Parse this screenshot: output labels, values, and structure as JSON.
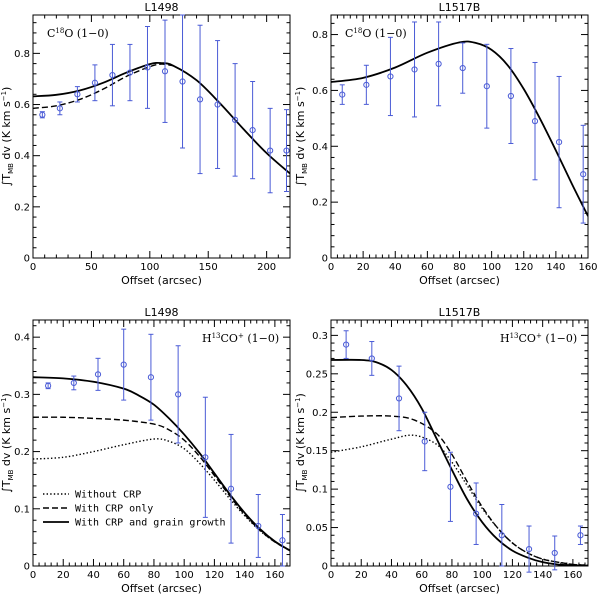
{
  "colors": {
    "data": "#4a5bd6",
    "model": "#000000"
  },
  "chart_data": [
    {
      "type": "line",
      "title": "L1498",
      "annotation": {
        "pre": "C",
        "sup": "18",
        "post": "O (1−0)"
      },
      "xlabel": "Offset (arcsec)",
      "ylabel": "∫T_MB dv (K km s^-1)",
      "xlim": [
        0,
        220
      ],
      "ylim": [
        0,
        0.95
      ],
      "xticks": [
        0,
        50,
        100,
        150,
        200
      ],
      "yticks": [
        0,
        0.2,
        0.4,
        0.6,
        0.8
      ],
      "tick_labels_x": [
        "0",
        "50",
        "100",
        "150",
        "200"
      ],
      "tick_labels_y": [
        "0",
        "0.2",
        "0.4",
        "0.6",
        "0.8"
      ],
      "observations": [
        {
          "x": 8,
          "y": 0.56,
          "err": 0.012
        },
        {
          "x": 23,
          "y": 0.585,
          "err": 0.025
        },
        {
          "x": 38,
          "y": 0.64,
          "err": 0.03
        },
        {
          "x": 53,
          "y": 0.685,
          "err": 0.07
        },
        {
          "x": 68,
          "y": 0.715,
          "err": 0.12
        },
        {
          "x": 83,
          "y": 0.725,
          "err": 0.11
        },
        {
          "x": 98,
          "y": 0.745,
          "err": 0.16
        },
        {
          "x": 113,
          "y": 0.73,
          "err": 0.2
        },
        {
          "x": 128,
          "y": 0.69,
          "err": 0.26
        },
        {
          "x": 143,
          "y": 0.62,
          "err": 0.29
        },
        {
          "x": 158,
          "y": 0.6,
          "err": 0.25
        },
        {
          "x": 173,
          "y": 0.54,
          "err": 0.22
        },
        {
          "x": 188,
          "y": 0.5,
          "err": 0.19
        },
        {
          "x": 203,
          "y": 0.42,
          "err": 0.165
        },
        {
          "x": 217,
          "y": 0.42,
          "err": 0.16
        }
      ],
      "series": [
        {
          "name": "With CRP and grain growth",
          "style": "solid",
          "x": [
            0,
            20,
            40,
            60,
            80,
            100,
            110,
            120,
            140,
            160,
            180,
            200,
            220
          ],
          "y": [
            0.632,
            0.638,
            0.655,
            0.685,
            0.725,
            0.758,
            0.762,
            0.752,
            0.695,
            0.605,
            0.505,
            0.41,
            0.33
          ]
        },
        {
          "name": "With CRP only",
          "style": "dashed",
          "x": [
            0,
            20,
            40,
            60,
            80,
            100,
            110,
            120
          ],
          "y": [
            0.585,
            0.595,
            0.62,
            0.66,
            0.71,
            0.748,
            0.758,
            0.752
          ]
        }
      ]
    },
    {
      "type": "line",
      "title": "L1517B",
      "annotation": {
        "pre": "C",
        "sup": "18",
        "post": "O (1−0)"
      },
      "xlabel": "Offset (arcsec)",
      "ylabel": "∫T_MB dv (K km s^-1)",
      "xlim": [
        0,
        160
      ],
      "ylim": [
        0,
        0.87
      ],
      "xticks": [
        0,
        20,
        40,
        60,
        80,
        100,
        120,
        140,
        160
      ],
      "yticks": [
        0,
        0.2,
        0.4,
        0.6,
        0.8
      ],
      "tick_labels_x": [
        "0",
        "20",
        "40",
        "60",
        "80",
        "100",
        "120",
        "140",
        "160"
      ],
      "tick_labels_y": [
        "0",
        "0.2",
        "0.4",
        "0.6",
        "0.8"
      ],
      "observations": [
        {
          "x": 7,
          "y": 0.585,
          "err": 0.035
        },
        {
          "x": 22,
          "y": 0.62,
          "err": 0.07
        },
        {
          "x": 37,
          "y": 0.65,
          "err": 0.14
        },
        {
          "x": 52,
          "y": 0.675,
          "err": 0.17
        },
        {
          "x": 67,
          "y": 0.695,
          "err": 0.15
        },
        {
          "x": 82,
          "y": 0.68,
          "err": 0.09
        },
        {
          "x": 97,
          "y": 0.615,
          "err": 0.15
        },
        {
          "x": 112,
          "y": 0.58,
          "err": 0.17
        },
        {
          "x": 127,
          "y": 0.49,
          "err": 0.21
        },
        {
          "x": 142,
          "y": 0.415,
          "err": 0.235
        },
        {
          "x": 157,
          "y": 0.3,
          "err": 0.175
        }
      ],
      "series": [
        {
          "name": "With CRP and grain growth",
          "style": "solid",
          "x": [
            0,
            20,
            40,
            60,
            80,
            90,
            100,
            110,
            120,
            130,
            140,
            150,
            160
          ],
          "y": [
            0.63,
            0.645,
            0.682,
            0.735,
            0.772,
            0.77,
            0.745,
            0.69,
            0.605,
            0.5,
            0.385,
            0.265,
            0.15
          ]
        }
      ]
    },
    {
      "type": "line",
      "title": "L1498",
      "annotation": {
        "pre": "H",
        "sup": "13",
        "post": "CO",
        "sup2": "+",
        "post2": " (1−0)"
      },
      "xlabel": "Offset (arcsec)",
      "ylabel": "∫T_MB dv (K km s^-1)",
      "xlim": [
        0,
        170
      ],
      "ylim": [
        0,
        0.43
      ],
      "xticks": [
        0,
        20,
        40,
        60,
        80,
        100,
        120,
        140,
        160
      ],
      "yticks": [
        0,
        0.1,
        0.2,
        0.3,
        0.4
      ],
      "tick_labels_x": [
        "0",
        "20",
        "40",
        "60",
        "80",
        "100",
        "120",
        "140",
        "160"
      ],
      "tick_labels_y": [
        "0",
        "0.1",
        "0.2",
        "0.3",
        "0.4"
      ],
      "observations": [
        {
          "x": 10,
          "y": 0.315,
          "err": 0.005
        },
        {
          "x": 27,
          "y": 0.32,
          "err": 0.012
        },
        {
          "x": 43,
          "y": 0.335,
          "err": 0.028
        },
        {
          "x": 60,
          "y": 0.352,
          "err": 0.062
        },
        {
          "x": 78,
          "y": 0.33,
          "err": 0.075
        },
        {
          "x": 96,
          "y": 0.3,
          "err": 0.085
        },
        {
          "x": 114,
          "y": 0.19,
          "err": 0.105
        },
        {
          "x": 131,
          "y": 0.135,
          "err": 0.095
        },
        {
          "x": 149,
          "y": 0.07,
          "err": 0.055
        },
        {
          "x": 165,
          "y": 0.045,
          "err": 0.045
        }
      ],
      "series": [
        {
          "name": "Without CRP",
          "style": "dotted",
          "x": [
            0,
            20,
            40,
            60,
            80,
            90,
            100,
            110,
            120,
            130,
            140,
            150,
            160,
            170
          ],
          "y": [
            0.187,
            0.19,
            0.2,
            0.212,
            0.222,
            0.218,
            0.205,
            0.18,
            0.15,
            0.118,
            0.088,
            0.062,
            0.042,
            0.027
          ]
        },
        {
          "name": "With CRP only",
          "style": "dashed",
          "x": [
            0,
            20,
            40,
            60,
            80,
            90,
            100,
            110,
            120,
            130,
            140,
            150,
            160,
            170
          ],
          "y": [
            0.26,
            0.26,
            0.258,
            0.255,
            0.248,
            0.238,
            0.22,
            0.192,
            0.158,
            0.123,
            0.09,
            0.063,
            0.042,
            0.027
          ]
        },
        {
          "name": "With CRP and grain growth",
          "style": "solid",
          "x": [
            0,
            20,
            40,
            60,
            70,
            80,
            90,
            100,
            110,
            120,
            130,
            140,
            150,
            160,
            170
          ],
          "y": [
            0.33,
            0.328,
            0.322,
            0.31,
            0.298,
            0.282,
            0.258,
            0.23,
            0.198,
            0.162,
            0.126,
            0.093,
            0.065,
            0.043,
            0.027
          ]
        }
      ],
      "legend": {
        "placement": "bottom-left",
        "items": [
          {
            "label": "Without CRP",
            "style": "dotted"
          },
          {
            "label": "With CRP only",
            "style": "dashed"
          },
          {
            "label": "With CRP and grain growth",
            "style": "solid"
          }
        ]
      }
    },
    {
      "type": "line",
      "title": "L1517B",
      "annotation": {
        "pre": "H",
        "sup": "13",
        "post": "CO",
        "sup2": "+",
        "post2": " (1−0)"
      },
      "xlabel": "Offset (arcsec)",
      "ylabel": "∫T_MB dv (K km s^-1)",
      "xlim": [
        0,
        170
      ],
      "ylim": [
        0,
        0.32
      ],
      "xticks": [
        0,
        20,
        40,
        60,
        80,
        100,
        120,
        140,
        160
      ],
      "yticks": [
        0,
        0.05,
        0.1,
        0.15,
        0.2,
        0.25,
        0.3
      ],
      "tick_labels_x": [
        "0",
        "20",
        "40",
        "60",
        "80",
        "100",
        "120",
        "140",
        "160"
      ],
      "tick_labels_y": [
        "0",
        "0.05",
        "0.1",
        "0.15",
        "0.2",
        "0.25",
        "0.3"
      ],
      "observations": [
        {
          "x": 10,
          "y": 0.288,
          "err": 0.018
        },
        {
          "x": 27,
          "y": 0.27,
          "err": 0.022
        },
        {
          "x": 45,
          "y": 0.218,
          "err": 0.042
        },
        {
          "x": 62,
          "y": 0.162,
          "err": 0.038
        },
        {
          "x": 79,
          "y": 0.103,
          "err": 0.045
        },
        {
          "x": 96,
          "y": 0.068,
          "err": 0.04
        },
        {
          "x": 113,
          "y": 0.04,
          "err": 0.04
        },
        {
          "x": 131,
          "y": 0.022,
          "err": 0.03
        },
        {
          "x": 148,
          "y": 0.017,
          "err": 0.022
        },
        {
          "x": 165,
          "y": 0.04,
          "err": 0.012
        }
      ],
      "series": [
        {
          "name": "Without CRP",
          "style": "dotted",
          "x": [
            0,
            20,
            40,
            55,
            70,
            80,
            90,
            100,
            110,
            120,
            130,
            140,
            150,
            160,
            170
          ],
          "y": [
            0.148,
            0.155,
            0.165,
            0.17,
            0.158,
            0.135,
            0.105,
            0.075,
            0.05,
            0.03,
            0.017,
            0.009,
            0.005,
            0.002,
            0.001
          ]
        },
        {
          "name": "With CRP only",
          "style": "dashed",
          "x": [
            0,
            20,
            40,
            55,
            70,
            80,
            90,
            100,
            110,
            120,
            130,
            140,
            150,
            160,
            170
          ],
          "y": [
            0.193,
            0.195,
            0.195,
            0.19,
            0.172,
            0.145,
            0.11,
            0.077,
            0.05,
            0.03,
            0.017,
            0.009,
            0.005,
            0.002,
            0.001
          ]
        },
        {
          "name": "With CRP and grain growth",
          "style": "solid",
          "x": [
            0,
            20,
            30,
            40,
            50,
            60,
            70,
            80,
            90,
            100,
            110,
            120,
            130,
            140,
            150,
            160,
            170
          ],
          "y": [
            0.268,
            0.268,
            0.265,
            0.255,
            0.235,
            0.205,
            0.165,
            0.125,
            0.087,
            0.057,
            0.035,
            0.02,
            0.011,
            0.005,
            0.002,
            0.001,
            0.0005
          ]
        }
      ]
    }
  ]
}
